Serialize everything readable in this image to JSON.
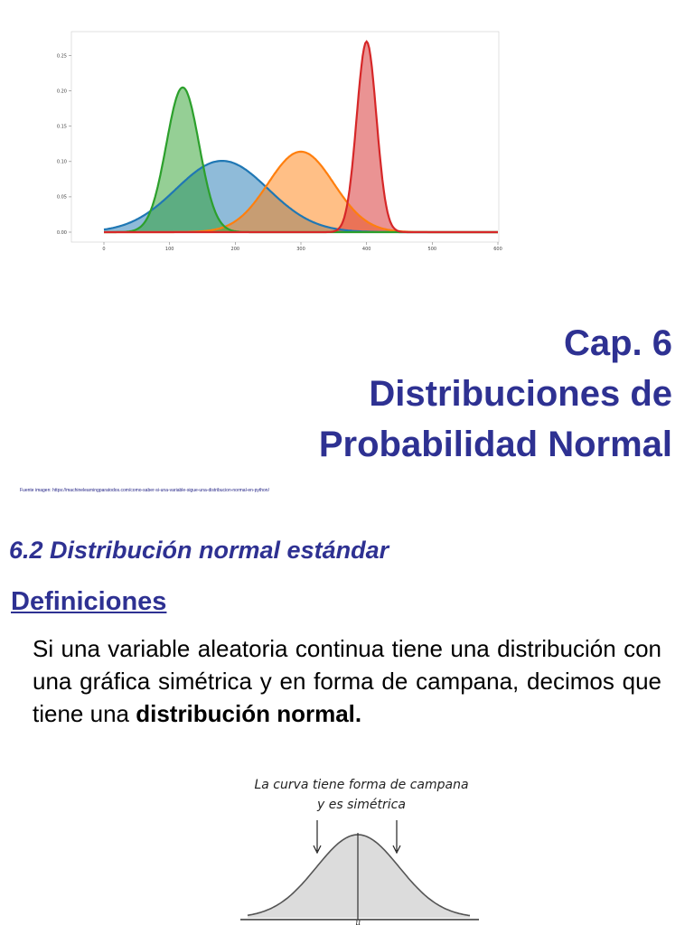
{
  "chart_data": {
    "type": "area",
    "x_ticks": [
      "0",
      "100",
      "200",
      "300",
      "400",
      "500",
      "600"
    ],
    "y_ticks": [
      "0.00",
      "0.05",
      "0.10",
      "0.15",
      "0.20",
      "0.25"
    ],
    "xlim": [
      0,
      600
    ],
    "ylim": [
      0,
      0.27
    ],
    "grid": false,
    "series": [
      {
        "color": "#1f77b4",
        "mean": 180,
        "sd": 70,
        "peak": 0.101
      },
      {
        "color": "#ff7f0e",
        "mean": 300,
        "sd": 50,
        "peak": 0.114
      },
      {
        "color": "#2ca02c",
        "mean": 120,
        "sd": 25,
        "peak": 0.205
      },
      {
        "color": "#d62728",
        "mean": 400,
        "sd": 15,
        "peak": 0.27
      }
    ]
  },
  "title": {
    "line1": "Cap. 6",
    "line2": "Distribuciones de",
    "line3": "Probabilidad Normal"
  },
  "image_source": "Fuente imagen: https://machinelearningparatodos.com/como-saber-si-una-variable-sigue-una-distribucion-normal-en-python/",
  "section_heading": "6.2 Distribución normal estándar",
  "subheading": "Definiciones",
  "definition": {
    "text": "Si una variable aleatoria continua tiene una distribución con una gráfica simétrica y en forma de campana, decimos que tiene una ",
    "bold": "distribución normal."
  },
  "bell_figure": {
    "caption_line1": "La curva tiene forma de campana",
    "caption_line2": "y es simétrica",
    "axis_label": "μ"
  },
  "colors": {
    "title": "#2e3192",
    "text": "#000000"
  }
}
